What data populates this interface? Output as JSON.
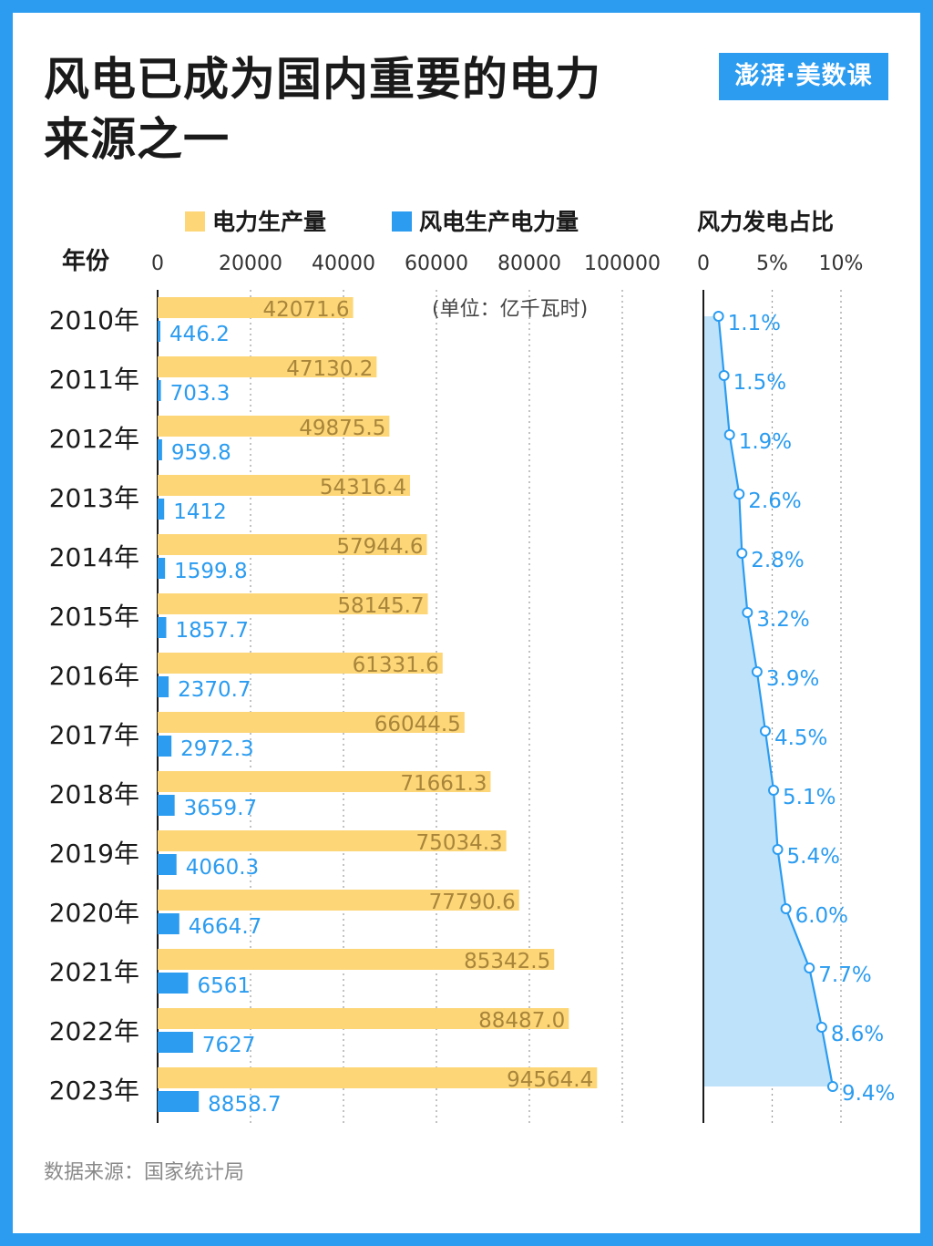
{
  "title_lines": [
    "风电已成为国内重要的电力",
    "来源之一"
  ],
  "logo_text": "澎湃·美数课",
  "source": "数据来源：国家统计局",
  "colors": {
    "background": "#2b9cf0",
    "total_bar": "#fdd678",
    "wind_bar": "#2b9cf0",
    "total_label": "#a8853a",
    "wind_label": "#2b9cf0",
    "share_fill": "#bfe2fb"
  },
  "chart_data": [
    {
      "type": "bar",
      "orientation": "horizontal",
      "category_header": "年份",
      "categories": [
        "2010年",
        "2011年",
        "2012年",
        "2013年",
        "2014年",
        "2015年",
        "2016年",
        "2017年",
        "2018年",
        "2019年",
        "2020年",
        "2021年",
        "2022年",
        "2023年"
      ],
      "unit_note": "(单位：亿千瓦时)",
      "xlim": [
        0,
        100000
      ],
      "xticks": [
        "0",
        "20000",
        "40000",
        "60000",
        "80000",
        "100000"
      ],
      "grid": "vertical dotted",
      "series": [
        {
          "name": "电力生产量",
          "color": "#fdd678",
          "values": [
            42071.6,
            47130.2,
            49875.5,
            54316.4,
            57944.6,
            58145.7,
            61331.6,
            66044.5,
            71661.3,
            75034.3,
            77790.6,
            85342.5,
            88487.0,
            94564.4
          ],
          "labels": [
            "42071.6",
            "47130.2",
            "49875.5",
            "54316.4",
            "57944.6",
            "58145.7",
            "61331.6",
            "66044.5",
            "71661.3",
            "75034.3",
            "77790.6",
            "85342.5",
            "88487.0",
            "94564.4"
          ]
        },
        {
          "name": "风电生产电力量",
          "color": "#2b9cf0",
          "values": [
            446.2,
            703.3,
            959.8,
            1412,
            1599.8,
            1857.7,
            2370.7,
            2972.3,
            3659.7,
            4060.3,
            4664.7,
            6561,
            7627,
            8858.7
          ],
          "labels": [
            "446.2",
            "703.3",
            "959.8",
            "1412",
            "1599.8",
            "1857.7",
            "2370.7",
            "2972.3",
            "3659.7",
            "4060.3",
            "4664.7",
            "6561",
            "7627",
            "8858.7"
          ]
        }
      ]
    },
    {
      "type": "area",
      "orientation": "vertical",
      "title": "风力发电占比",
      "xlim": [
        0,
        10
      ],
      "xticks": [
        "0",
        "5%",
        "10%"
      ],
      "grid": "vertical dotted",
      "values": [
        1.1,
        1.5,
        1.9,
        2.6,
        2.8,
        3.2,
        3.9,
        4.5,
        5.1,
        5.4,
        6.0,
        7.7,
        8.6,
        9.4
      ],
      "labels": [
        "1.1%",
        "1.5%",
        "1.9%",
        "2.6%",
        "2.8%",
        "3.2%",
        "3.9%",
        "4.5%",
        "5.1%",
        "5.4%",
        "6.0%",
        "7.7%",
        "8.6%",
        "9.4%"
      ]
    }
  ]
}
